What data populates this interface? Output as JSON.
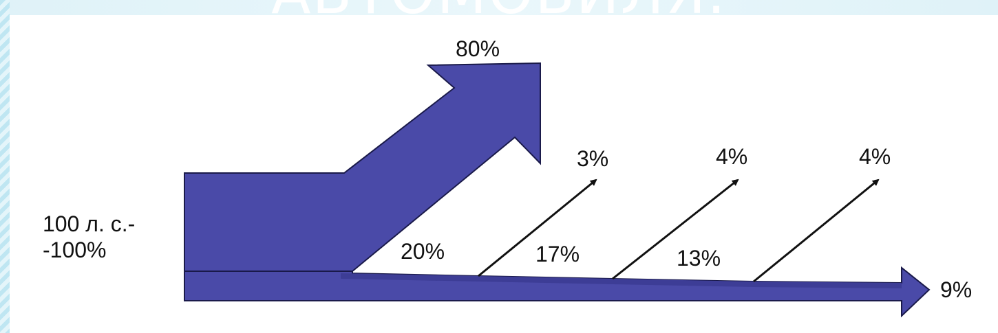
{
  "slide": {
    "title": "АВТОМОБИЛЯ."
  },
  "diagram": {
    "input_label_line1": "100 л. с.-",
    "input_label_line2": "-100%",
    "useful_output": "80%",
    "losses": [
      {
        "stage_value": "20%",
        "branch_value": "3%"
      },
      {
        "stage_value": "17%",
        "branch_value": "4%"
      },
      {
        "stage_value": "13%",
        "branch_value": "4%"
      }
    ],
    "final_output": "9%",
    "arrow_color": "#4a4aa8"
  }
}
